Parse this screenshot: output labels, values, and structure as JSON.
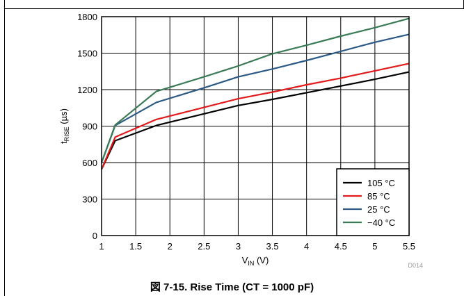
{
  "caption": "図 7-15. Rise Time (CT = 1000 pF)",
  "figure_code": "D014",
  "chart_data": {
    "type": "line",
    "xlabel": {
      "main": "V",
      "sub": "IN",
      "unit": " (V)"
    },
    "ylabel": {
      "main": "t",
      "sub": "RISE",
      "unit": " (µs)"
    },
    "xlim": [
      1,
      5.5
    ],
    "ylim": [
      0,
      1800
    ],
    "x_ticks": [
      1,
      1.5,
      2,
      2.5,
      3,
      3.5,
      4,
      4.5,
      5,
      5.5
    ],
    "y_ticks": [
      0,
      300,
      600,
      900,
      1200,
      1500,
      1800
    ],
    "grid": true,
    "legend_position": "bottom-right",
    "series": [
      {
        "name": "105 °C",
        "color": "#000000",
        "x": [
          1,
          1.2,
          1.8,
          3,
          3.5,
          4,
          4.5,
          5,
          5.5
        ],
        "y": [
          545,
          780,
          905,
          1070,
          1120,
          1175,
          1230,
          1285,
          1345
        ]
      },
      {
        "name": "85 °C",
        "color": "#e31a1c",
        "x": [
          1,
          1.2,
          1.8,
          3,
          3.5,
          4,
          4.5,
          5,
          5.5
        ],
        "y": [
          545,
          810,
          955,
          1125,
          1180,
          1240,
          1295,
          1355,
          1415
        ]
      },
      {
        "name": "25 °C",
        "color": "#2c5a85",
        "x": [
          1,
          1.2,
          1.8,
          2.5,
          3,
          3.5,
          4,
          4.5,
          5,
          5.5
        ],
        "y": [
          600,
          905,
          1095,
          1215,
          1305,
          1370,
          1440,
          1515,
          1590,
          1655
        ]
      },
      {
        "name": "−40 °C",
        "color": "#3a7a55",
        "x": [
          1,
          1.2,
          1.8,
          2.5,
          3,
          3.5,
          4,
          4.5,
          5,
          5.5
        ],
        "y": [
          600,
          910,
          1185,
          1305,
          1395,
          1495,
          1565,
          1640,
          1710,
          1785
        ]
      }
    ]
  }
}
